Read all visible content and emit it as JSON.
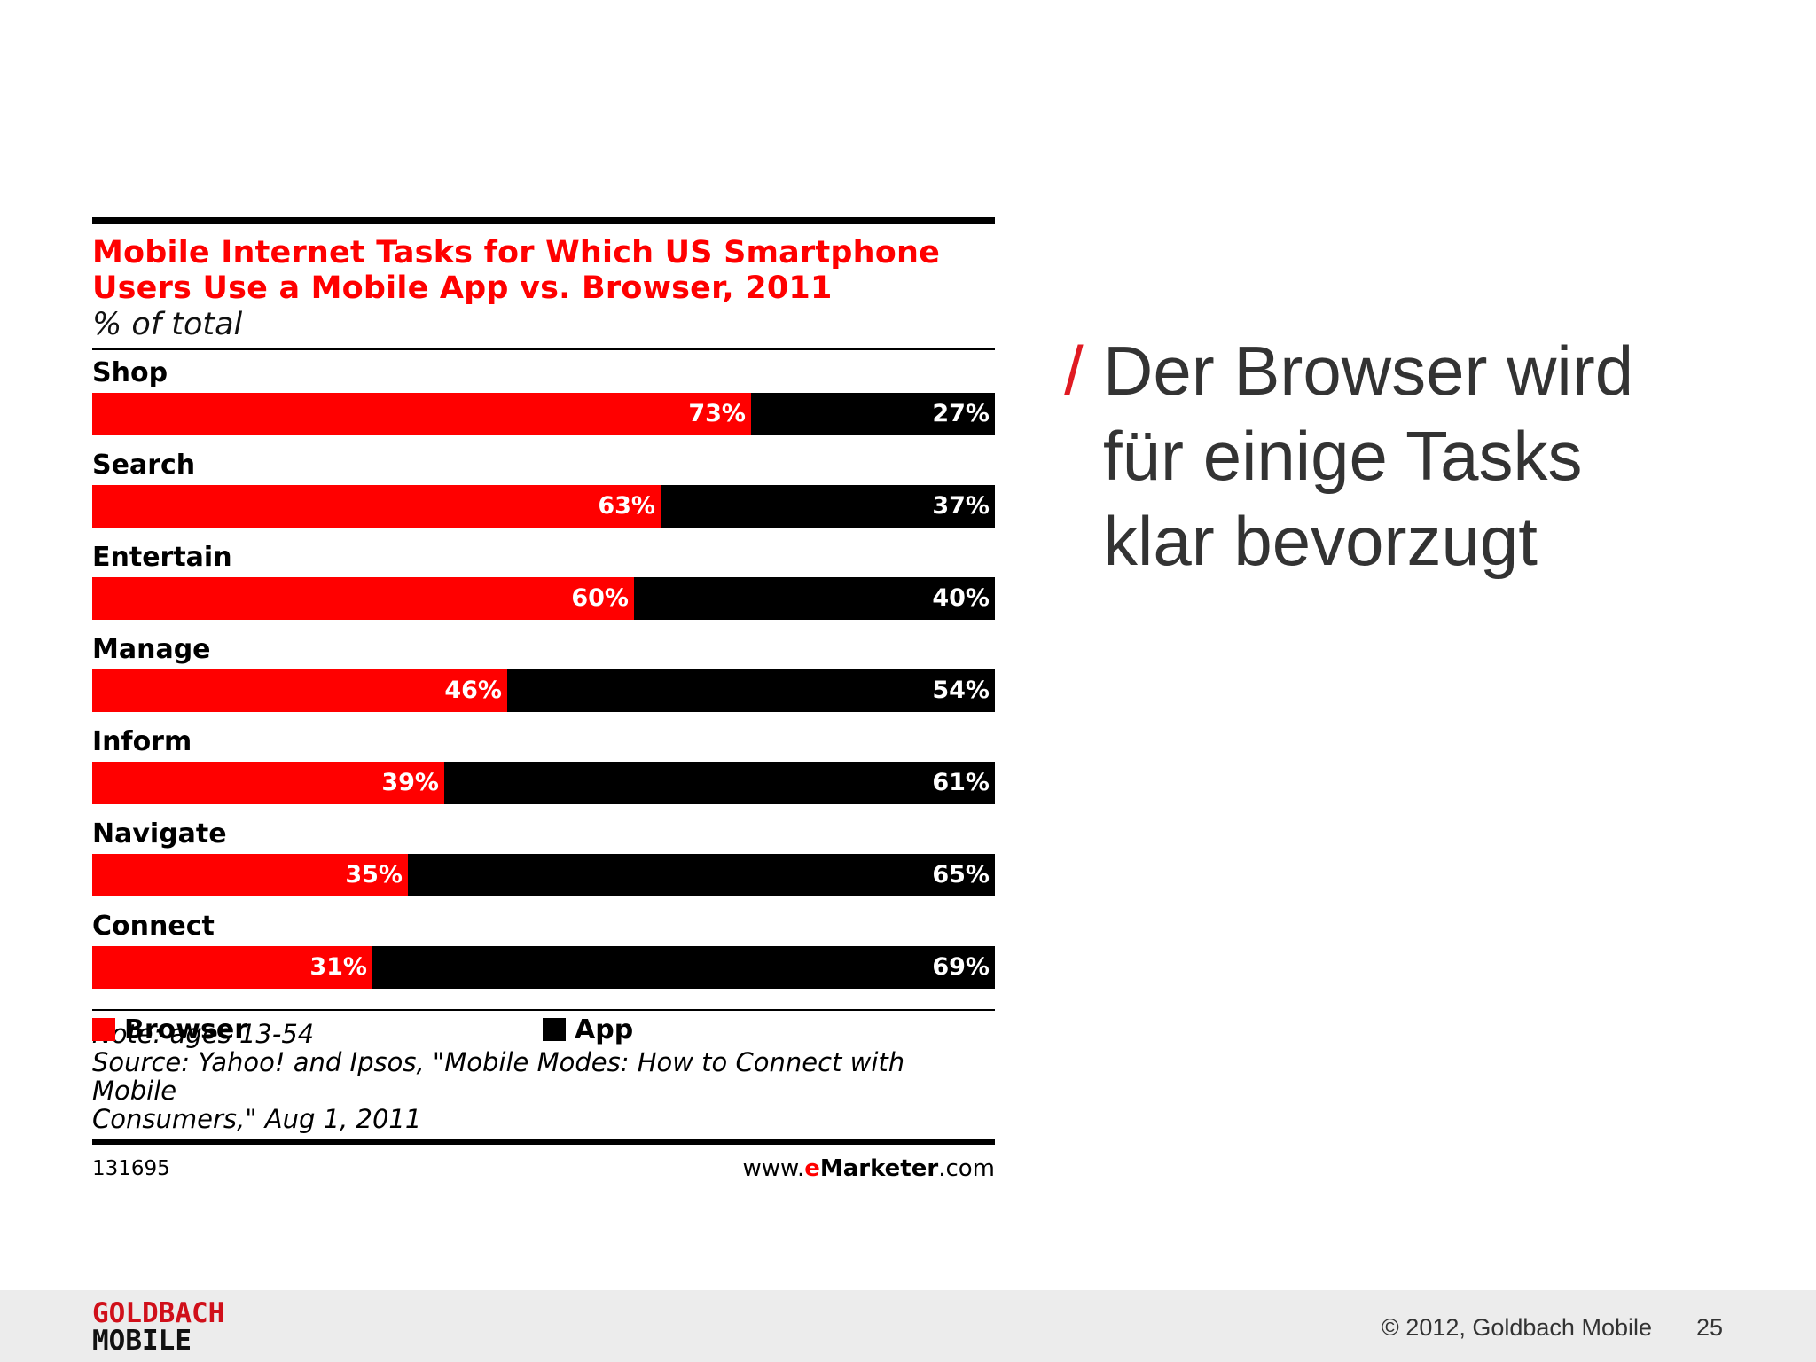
{
  "chart_data": {
    "type": "bar",
    "stacked": true,
    "orientation": "horizontal",
    "title": "Mobile Internet Tasks for Which US Smartphone Users Use a Mobile App vs. Browser, 2011",
    "subtitle": "% of total",
    "categories": [
      "Shop",
      "Search",
      "Entertain",
      "Manage",
      "Inform",
      "Navigate",
      "Connect"
    ],
    "series": [
      {
        "name": "Browser",
        "color": "#ff0000",
        "values": [
          73,
          63,
          60,
          46,
          39,
          35,
          31
        ]
      },
      {
        "name": "App",
        "color": "#000000",
        "values": [
          27,
          37,
          40,
          54,
          61,
          65,
          69
        ]
      }
    ],
    "unit_suffix": "%",
    "xlim": [
      0,
      100
    ],
    "legend_position": "bottom",
    "grid": false,
    "note": "Note: ages 13-54",
    "source_line1": "Source: Yahoo! and Ipsos, \"Mobile Modes: How to Connect with Mobile",
    "source_line2": "Consumers,\" Aug 1, 2011",
    "chart_id": "131695",
    "brand": {
      "prefix": "www.",
      "e": "e",
      "name": "Marketer",
      "suffix": ".com"
    }
  },
  "slide": {
    "slash": "/",
    "headline_lines": [
      "Der Browser wird",
      "für einige Tasks",
      "klar bevorzugt"
    ],
    "logo_line1": "GOLDBACH",
    "logo_line2": "MOBILE",
    "copyright": "© 2012, Goldbach Mobile",
    "page_number": "25"
  }
}
